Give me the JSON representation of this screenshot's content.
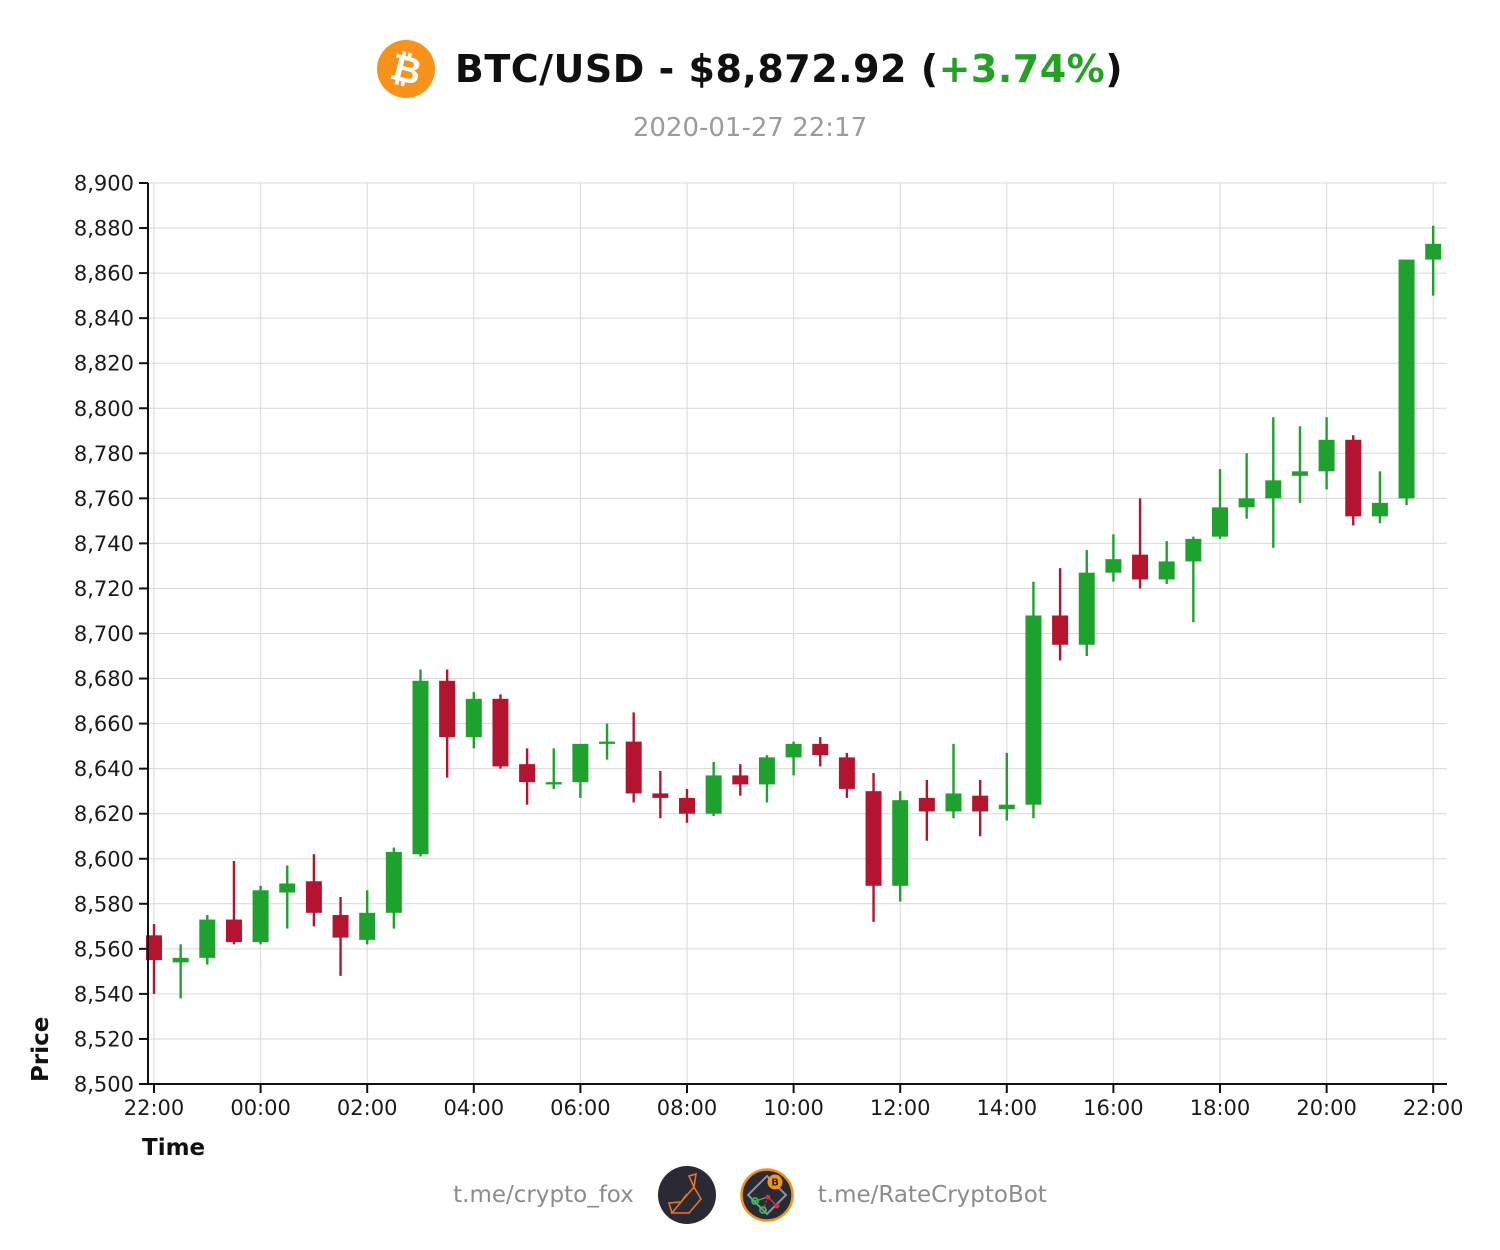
{
  "header": {
    "title_left": "BTC/USD - $8,872.92 (",
    "title_change": "+3.74%",
    "title_right": ")",
    "subtitle": "2020-01-27 22:17",
    "bitcoin_icon_glyph": "₿"
  },
  "footer": {
    "left_label": "t.me/crypto_fox",
    "right_label": "t.me/RateCryptoBot",
    "left_icon": "fox-logo",
    "right_icon": "rate-crypto-bot-logo"
  },
  "colors": {
    "up_green": "#1ea12d",
    "down_red": "#b4142d",
    "title_change_green": "#22a122",
    "grid_gray": "#d9d9d9",
    "axis_black": "#111111",
    "tick_label": "#1a1a1a",
    "subtitle_gray": "#9b9b9b",
    "footer_gray": "#8c8c8c",
    "bitcoin_orange": "#f7931a"
  },
  "chart_data": {
    "type": "candlestick",
    "title": "BTC/USD - $8,872.92 (+3.74%)",
    "subtitle": "2020-01-27 22:17",
    "xlabel": "Time",
    "ylabel": "Price",
    "ylim": [
      8500,
      8900
    ],
    "y_tick_step": 20,
    "x_tick_every": 4,
    "grid": true,
    "interval": "30m",
    "columns": [
      "time",
      "open",
      "high",
      "low",
      "close"
    ],
    "candles": [
      [
        "22:00",
        8566,
        8571,
        8540,
        8555
      ],
      [
        "22:30",
        8554,
        8562,
        8538,
        8556
      ],
      [
        "23:00",
        8556,
        8575,
        8553,
        8573
      ],
      [
        "23:30",
        8573,
        8599,
        8562,
        8563
      ],
      [
        "00:00",
        8563,
        8588,
        8562,
        8586
      ],
      [
        "00:30",
        8585,
        8597,
        8569,
        8589
      ],
      [
        "01:00",
        8590,
        8602,
        8570,
        8576
      ],
      [
        "01:30",
        8575,
        8583,
        8548,
        8565
      ],
      [
        "02:00",
        8564,
        8586,
        8562,
        8576
      ],
      [
        "02:30",
        8576,
        8605,
        8569,
        8603
      ],
      [
        "03:00",
        8602,
        8684,
        8601,
        8679
      ],
      [
        "03:30",
        8679,
        8684,
        8636,
        8654
      ],
      [
        "04:00",
        8654,
        8674,
        8649,
        8671
      ],
      [
        "04:30",
        8671,
        8673,
        8640,
        8641
      ],
      [
        "05:00",
        8642,
        8649,
        8624,
        8634
      ],
      [
        "05:30",
        8633,
        8649,
        8631,
        8634
      ],
      [
        "06:00",
        8634,
        8651,
        8627,
        8651
      ],
      [
        "06:30",
        8651,
        8660,
        8644,
        8652
      ],
      [
        "07:00",
        8652,
        8665,
        8625,
        8629
      ],
      [
        "07:30",
        8629,
        8639,
        8618,
        8627
      ],
      [
        "08:00",
        8627,
        8631,
        8616,
        8620
      ],
      [
        "08:30",
        8620,
        8643,
        8619,
        8637
      ],
      [
        "09:00",
        8637,
        8642,
        8628,
        8633
      ],
      [
        "09:30",
        8633,
        8646,
        8625,
        8645
      ],
      [
        "10:00",
        8645,
        8652,
        8637,
        8651
      ],
      [
        "10:30",
        8651,
        8654,
        8641,
        8646
      ],
      [
        "11:00",
        8645,
        8647,
        8627,
        8631
      ],
      [
        "11:30",
        8630,
        8638,
        8572,
        8588
      ],
      [
        "12:00",
        8588,
        8630,
        8581,
        8626
      ],
      [
        "12:30",
        8627,
        8635,
        8608,
        8621
      ],
      [
        "13:00",
        8621,
        8651,
        8618,
        8629
      ],
      [
        "13:30",
        8628,
        8635,
        8610,
        8621
      ],
      [
        "14:00",
        8622,
        8647,
        8617,
        8624
      ],
      [
        "14:30",
        8624,
        8723,
        8618,
        8708
      ],
      [
        "15:00",
        8708,
        8729,
        8688,
        8695
      ],
      [
        "15:30",
        8695,
        8737,
        8690,
        8727
      ],
      [
        "16:00",
        8727,
        8744,
        8723,
        8733
      ],
      [
        "16:30",
        8735,
        8760,
        8720,
        8724
      ],
      [
        "17:00",
        8724,
        8741,
        8722,
        8732
      ],
      [
        "17:30",
        8732,
        8743,
        8705,
        8742
      ],
      [
        "18:00",
        8743,
        8773,
        8742,
        8756
      ],
      [
        "18:30",
        8756,
        8780,
        8751,
        8760
      ],
      [
        "19:00",
        8760,
        8796,
        8738,
        8768
      ],
      [
        "19:30",
        8770,
        8792,
        8758,
        8772
      ],
      [
        "20:00",
        8772,
        8796,
        8764,
        8786
      ],
      [
        "20:30",
        8786,
        8788,
        8748,
        8752
      ],
      [
        "21:00",
        8752,
        8772,
        8749,
        8758
      ],
      [
        "21:30",
        8760,
        8866,
        8757,
        8866
      ],
      [
        "22:00",
        8866,
        8881,
        8850,
        8873
      ]
    ]
  }
}
